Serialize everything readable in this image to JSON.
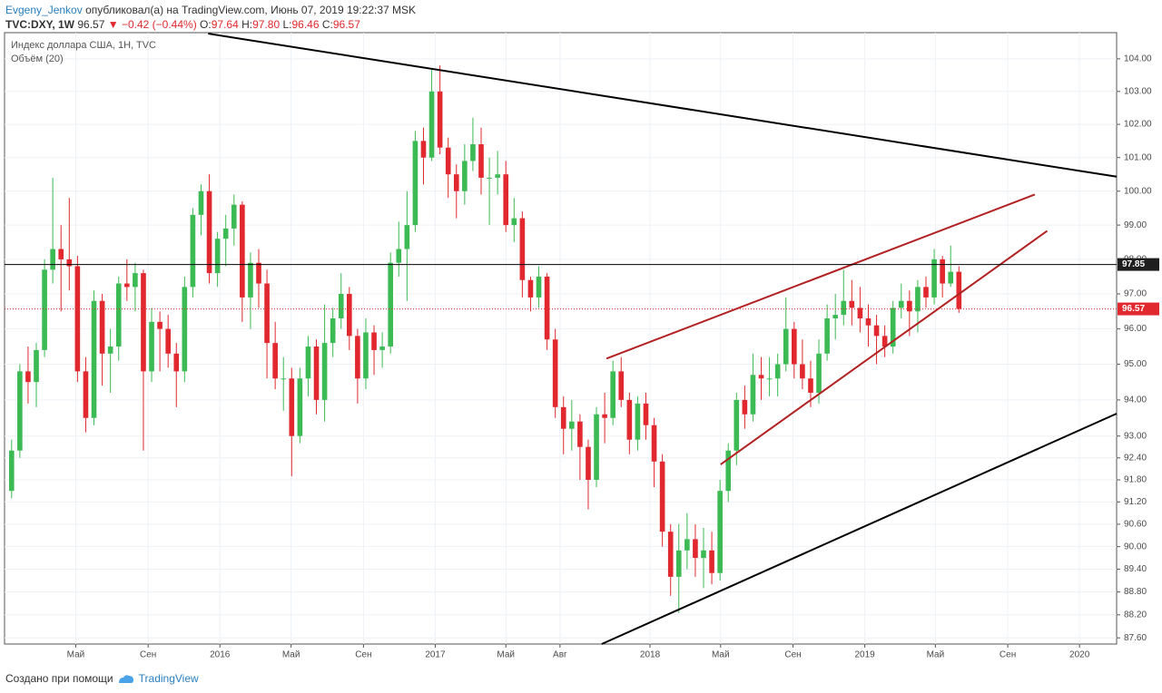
{
  "header": {
    "author": "Evgeny_Jenkov",
    "published": "опубликовал(а) на TradingView.com, Июнь 07, 2019 19:22:37 MSK",
    "symbol": "TVC:DXY, 1W",
    "last": "96.57",
    "arrow": "▼",
    "change": "−0.42 (−0.44%)",
    "ohlc_labels": [
      "O:",
      "H:",
      "L:",
      "C:"
    ],
    "ohlc": [
      "97.64",
      "97.80",
      "96.46",
      "96.57"
    ]
  },
  "footer": {
    "text": "Создано при помощи",
    "brand": "TradingView"
  },
  "chart_data": {
    "type": "candlestick",
    "title": "Индекс доллара США, 1H, TVC",
    "subtitle": "Объём (20)",
    "log": true,
    "grid": true,
    "up_color": "#3cba54",
    "down_color": "#e0282e",
    "x": [
      "2015-01-05",
      "2015-01-19",
      "2015-02-02",
      "2015-02-16",
      "2015-03-02",
      "2015-03-16",
      "2015-03-30",
      "2015-04-13",
      "2015-04-27",
      "2015-05-11",
      "2015-05-25",
      "2015-06-08",
      "2015-06-22",
      "2015-07-06",
      "2015-07-20",
      "2015-08-03",
      "2015-08-17",
      "2015-08-31",
      "2015-09-14",
      "2015-09-28",
      "2015-10-12",
      "2015-10-26",
      "2015-11-09",
      "2015-11-23",
      "2015-12-07",
      "2015-12-21",
      "2016-01-04",
      "2016-01-18",
      "2016-02-01",
      "2016-02-15",
      "2016-02-29",
      "2016-03-14",
      "2016-03-28",
      "2016-04-11",
      "2016-04-25",
      "2016-05-09",
      "2016-05-23",
      "2016-06-06",
      "2016-06-20",
      "2016-07-04",
      "2016-07-18",
      "2016-08-01",
      "2016-08-15",
      "2016-08-29",
      "2016-09-12",
      "2016-09-26",
      "2016-10-10",
      "2016-10-24",
      "2016-11-07",
      "2016-11-21",
      "2016-12-05",
      "2016-12-19",
      "2017-01-02",
      "2017-01-16",
      "2017-01-30",
      "2017-02-13",
      "2017-02-27",
      "2017-03-13",
      "2017-03-27",
      "2017-04-10",
      "2017-04-24",
      "2017-05-08",
      "2017-05-22",
      "2017-06-05",
      "2017-06-19",
      "2017-07-03",
      "2017-07-17",
      "2017-07-31",
      "2017-08-14",
      "2017-08-28",
      "2017-09-11",
      "2017-09-25",
      "2017-10-09",
      "2017-10-23",
      "2017-11-06",
      "2017-11-20",
      "2017-12-04",
      "2017-12-18",
      "2018-01-01",
      "2018-01-15",
      "2018-01-29",
      "2018-02-12",
      "2018-02-26",
      "2018-03-12",
      "2018-03-26",
      "2018-04-09",
      "2018-04-23",
      "2018-05-07",
      "2018-05-21",
      "2018-06-04",
      "2018-06-18",
      "2018-07-02",
      "2018-07-16",
      "2018-07-30",
      "2018-08-13",
      "2018-08-27",
      "2018-09-10",
      "2018-09-24",
      "2018-10-08",
      "2018-10-22",
      "2018-11-05",
      "2018-11-19",
      "2018-12-03",
      "2018-12-17",
      "2018-12-31",
      "2019-01-14",
      "2019-01-28",
      "2019-02-11",
      "2019-02-25",
      "2019-03-11",
      "2019-03-25",
      "2019-04-08",
      "2019-04-22",
      "2019-05-06",
      "2019-05-20",
      "2019-06-03"
    ],
    "open": [
      91.5,
      92.6,
      94.8,
      94.5,
      95.4,
      97.7,
      98.3,
      98.0,
      97.8,
      94.8,
      93.5,
      96.8,
      95.3,
      95.5,
      97.3,
      97.2,
      97.6,
      94.8,
      96.2,
      96.0,
      95.3,
      94.8,
      97.2,
      99.3,
      100.0,
      97.6,
      98.6,
      98.9,
      99.6,
      96.9,
      97.9,
      97.3,
      95.6,
      94.6,
      94.6,
      93.0,
      94.6,
      95.5,
      94.0,
      95.6,
      96.3,
      97.0,
      95.8,
      94.6,
      95.9,
      95.4,
      95.5,
      97.9,
      98.3,
      99.0,
      101.5,
      101.0,
      103.0,
      101.3,
      100.5,
      100.0,
      100.9,
      101.4,
      100.4,
      100.4,
      100.5,
      99.0,
      99.2,
      97.4,
      96.9,
      97.5,
      95.7,
      93.8,
      93.2,
      93.4,
      92.7,
      91.8,
      93.6,
      93.5,
      94.8,
      94.0,
      92.9,
      93.9,
      93.3,
      92.3,
      90.4,
      89.2,
      89.9,
      90.2,
      89.7,
      89.9,
      89.3,
      91.5,
      92.6,
      94.0,
      93.6,
      94.7,
      94.6,
      94.6,
      95.0,
      96.0,
      95.0,
      94.6,
      94.2,
      95.3,
      96.3,
      96.4,
      96.8,
      96.6,
      96.3,
      96.1,
      95.8,
      95.5,
      96.6,
      96.8,
      96.5,
      97.2,
      96.9,
      98.0,
      97.3,
      97.64
    ],
    "high": [
      92.9,
      95.0,
      95.5,
      95.6,
      98.0,
      100.4,
      99.0,
      99.8,
      98.1,
      95.2,
      97.1,
      97.0,
      96.0,
      97.5,
      98.0,
      97.9,
      97.7,
      96.6,
      96.5,
      96.4,
      95.6,
      97.5,
      99.5,
      100.2,
      100.5,
      98.8,
      99.3,
      99.9,
      99.7,
      98.2,
      98.3,
      97.7,
      96.2,
      95.2,
      94.9,
      94.9,
      95.8,
      95.7,
      96.7,
      96.6,
      97.6,
      97.2,
      96.0,
      96.3,
      96.1,
      95.9,
      98.2,
      99.1,
      100.0,
      101.8,
      101.9,
      103.7,
      103.8,
      101.6,
      100.8,
      101.4,
      102.2,
      101.9,
      101.0,
      101.2,
      100.9,
      99.8,
      99.4,
      97.5,
      97.8,
      97.6,
      96.0,
      94.1,
      94.0,
      93.6,
      92.9,
      93.8,
      94.2,
      95.1,
      95.2,
      94.2,
      94.1,
      94.2,
      93.5,
      92.5,
      90.6,
      90.6,
      90.9,
      90.6,
      90.5,
      90.4,
      91.8,
      92.8,
      94.2,
      94.4,
      95.3,
      95.2,
      95.2,
      95.3,
      96.9,
      96.2,
      95.7,
      95.1,
      95.7,
      96.7,
      97.0,
      97.7,
      97.4,
      97.2,
      96.7,
      96.4,
      96.1,
      96.8,
      97.3,
      97.1,
      97.4,
      97.5,
      98.3,
      98.1,
      98.4,
      97.8
    ],
    "low": [
      91.3,
      92.4,
      93.9,
      93.8,
      95.2,
      97.3,
      96.5,
      97.1,
      94.5,
      93.1,
      93.3,
      94.4,
      94.2,
      95.1,
      96.8,
      96.5,
      92.6,
      94.5,
      94.8,
      94.9,
      93.8,
      94.5,
      96.9,
      98.7,
      97.3,
      97.2,
      97.8,
      98.4,
      96.2,
      96.0,
      96.6,
      94.6,
      94.3,
      93.7,
      91.9,
      92.8,
      94.1,
      93.6,
      93.4,
      95.2,
      96.0,
      95.4,
      93.9,
      94.3,
      94.7,
      94.9,
      95.3,
      97.5,
      96.8,
      98.8,
      100.2,
      100.9,
      101.1,
      99.8,
      99.2,
      99.6,
      100.6,
      99.9,
      99.0,
      99.9,
      98.8,
      98.5,
      96.9,
      96.5,
      96.6,
      95.4,
      93.5,
      92.5,
      92.6,
      91.8,
      91.0,
      91.6,
      92.8,
      93.3,
      93.8,
      92.5,
      92.6,
      92.9,
      91.6,
      90.0,
      88.7,
      88.25,
      89.4,
      89.2,
      88.9,
      89.0,
      89.1,
      91.2,
      92.2,
      93.2,
      93.4,
      94.0,
      94.1,
      94.1,
      94.8,
      94.6,
      94.3,
      93.8,
      93.9,
      95.1,
      95.7,
      96.1,
      96.1,
      95.9,
      95.5,
      95.0,
      95.2,
      95.3,
      96.3,
      95.8,
      95.9,
      96.6,
      96.7,
      96.9,
      97.2,
      96.46
    ],
    "close": [
      92.6,
      94.8,
      94.5,
      95.4,
      97.7,
      98.3,
      98.0,
      97.8,
      94.8,
      93.5,
      96.8,
      95.3,
      95.5,
      97.3,
      97.2,
      97.6,
      94.8,
      96.2,
      96.0,
      95.3,
      94.8,
      97.2,
      99.3,
      100.0,
      97.6,
      98.6,
      98.9,
      99.6,
      96.9,
      97.9,
      97.3,
      95.6,
      94.6,
      94.6,
      93.0,
      94.6,
      95.5,
      94.0,
      95.6,
      96.3,
      97.0,
      95.8,
      94.6,
      95.9,
      95.4,
      95.5,
      97.9,
      98.3,
      99.0,
      101.5,
      101.0,
      103.0,
      101.3,
      100.5,
      100.0,
      100.9,
      101.4,
      100.4,
      100.4,
      100.5,
      99.0,
      99.2,
      97.4,
      96.9,
      97.5,
      95.7,
      93.8,
      93.2,
      93.4,
      92.7,
      91.8,
      93.6,
      93.5,
      94.8,
      94.0,
      92.9,
      93.9,
      93.3,
      92.3,
      90.4,
      89.2,
      89.9,
      90.2,
      89.7,
      89.9,
      89.3,
      91.5,
      92.6,
      94.0,
      93.6,
      94.7,
      94.6,
      94.6,
      95.0,
      96.0,
      95.0,
      94.6,
      94.2,
      95.3,
      96.3,
      96.4,
      96.8,
      96.6,
      96.3,
      96.1,
      95.8,
      95.5,
      96.6,
      96.8,
      96.5,
      97.2,
      96.9,
      98.0,
      97.3,
      97.64,
      96.57
    ],
    "xlim": [
      "2014-12-31",
      "2020-03-04"
    ],
    "xticks": [
      {
        "value": "2015-05-01",
        "label": "Май"
      },
      {
        "value": "2015-09-01",
        "label": "Сен"
      },
      {
        "value": "2016-01-01",
        "label": "2016"
      },
      {
        "value": "2016-05-01",
        "label": "Май"
      },
      {
        "value": "2016-09-01",
        "label": "Сен"
      },
      {
        "value": "2017-01-01",
        "label": "2017"
      },
      {
        "value": "2017-05-01",
        "label": "Май"
      },
      {
        "value": "2017-08-01",
        "label": "Авг"
      },
      {
        "value": "2018-01-01",
        "label": "2018"
      },
      {
        "value": "2018-05-01",
        "label": "Май"
      },
      {
        "value": "2018-09-01",
        "label": "Сен"
      },
      {
        "value": "2019-01-01",
        "label": "2019"
      },
      {
        "value": "2019-05-01",
        "label": "Май"
      },
      {
        "value": "2019-09-01",
        "label": "Сен"
      },
      {
        "value": "2020-01-01",
        "label": "2020"
      }
    ],
    "ylim": [
      87.44,
      104.81
    ],
    "yticks": [
      {
        "value": 104,
        "label": "104.00"
      },
      {
        "value": 103,
        "label": "103.00"
      },
      {
        "value": 102,
        "label": "102.00"
      },
      {
        "value": 101,
        "label": "101.00"
      },
      {
        "value": 100,
        "label": "100.00"
      },
      {
        "value": 99,
        "label": "99.00"
      },
      {
        "value": 98,
        "label": "98.00"
      },
      {
        "value": 97,
        "label": "97.00"
      },
      {
        "value": 96,
        "label": "96.00"
      },
      {
        "value": 95,
        "label": "95.00"
      },
      {
        "value": 94,
        "label": "94.00"
      },
      {
        "value": 93,
        "label": "93.00"
      },
      {
        "value": 92.4,
        "label": "92.40"
      },
      {
        "value": 91.8,
        "label": "91.80"
      },
      {
        "value": 91.2,
        "label": "91.20"
      },
      {
        "value": 90.6,
        "label": "90.60"
      },
      {
        "value": 90,
        "label": "90.00"
      },
      {
        "value": 89.4,
        "label": "89.40"
      },
      {
        "value": 88.8,
        "label": "88.80"
      },
      {
        "value": 88.2,
        "label": "88.20"
      },
      {
        "value": 87.6,
        "label": "87.60"
      }
    ],
    "hlines": [
      {
        "value": 97.85,
        "color": "#000000"
      }
    ],
    "last_color": "#e0282e",
    "drawings": [
      {
        "color": "#000000",
        "from": [
          "2015-12-12",
          104.78
        ],
        "to": [
          "2020-03-04",
          100.43
        ]
      },
      {
        "color": "#000000",
        "from": [
          "2017-10-11",
          87.44
        ],
        "to": [
          "2020-03-04",
          93.62
        ]
      },
      {
        "color": "#b22222",
        "from": [
          "2017-10-19",
          95.16
        ],
        "to": [
          "2019-10-17",
          99.9
        ]
      },
      {
        "color": "#b22222",
        "from": [
          "2018-05-01",
          92.22
        ],
        "to": [
          "2019-11-07",
          98.83
        ]
      }
    ]
  }
}
